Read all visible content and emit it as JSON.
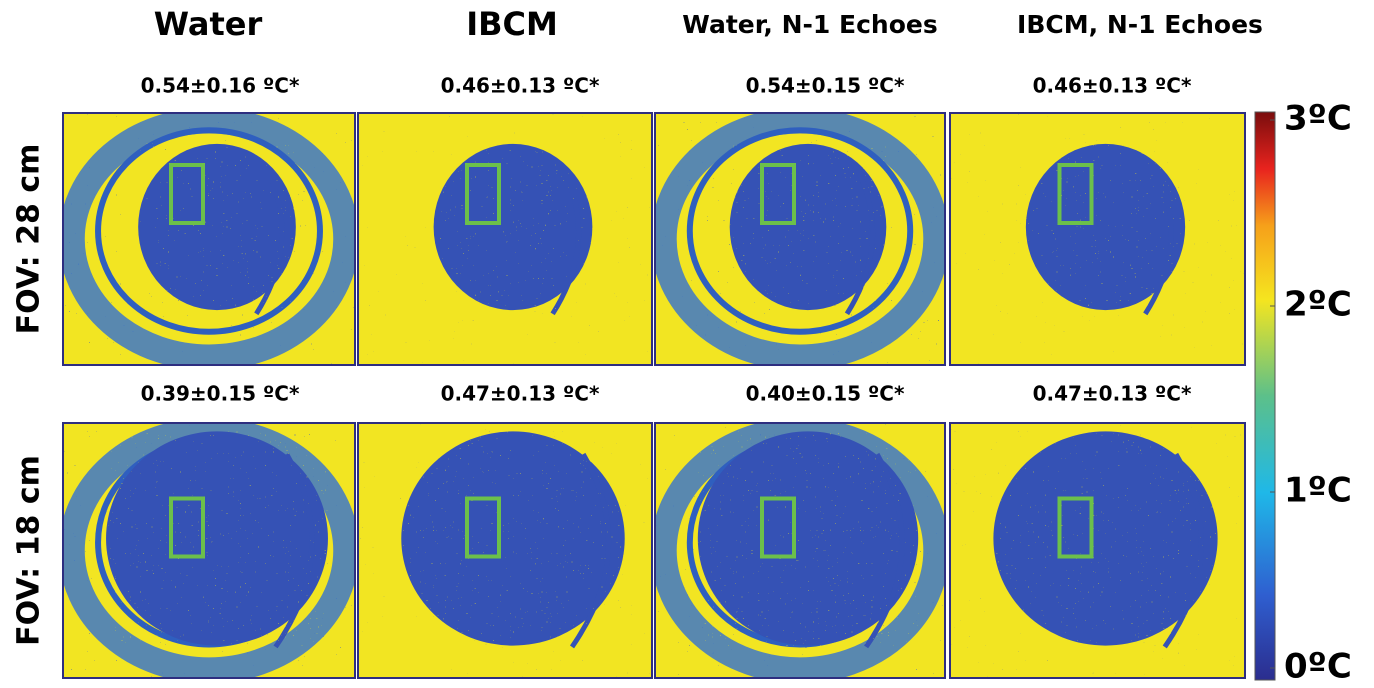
{
  "column_titles": [
    "Water",
    "IBCM",
    "Water, N-1 Echoes",
    "IBCM, N-1 Echoes"
  ],
  "rows": [
    {
      "label": "FOV: 28 cm",
      "stats": [
        "0.54±0.16 ºC*",
        "0.46±0.13 ºC*",
        "0.54±0.15 ºC*",
        "0.46±0.13 ºC*"
      ]
    },
    {
      "label": "FOV: 18 cm",
      "stats": [
        "0.39±0.15 ºC*",
        "0.47±0.13 ºC*",
        "0.40±0.15 ºC*",
        "0.47±0.13 ºC*"
      ]
    }
  ],
  "colorbar": {
    "labels": [
      "3ºC",
      "2ºC",
      "1ºC",
      "0ºC"
    ]
  }
}
